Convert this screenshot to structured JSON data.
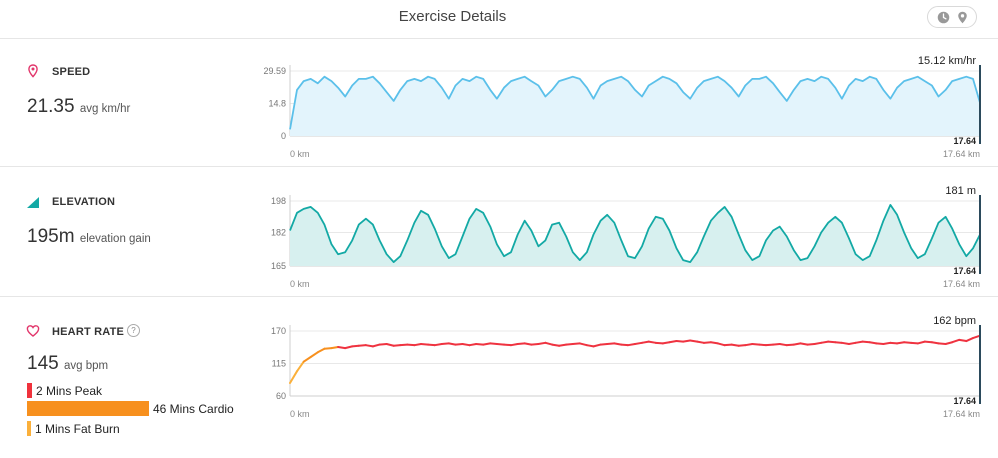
{
  "header": {
    "title": "Exercise Details",
    "toggle_icons": [
      "clock-icon",
      "map-pin-icon"
    ]
  },
  "speed": {
    "label": "SPEED",
    "value": "21.35",
    "unit": "avg km/hr",
    "icon": "map-pin-icon",
    "color": "#5bc0ea",
    "chart_data": {
      "type": "area",
      "y_ticks": [
        "29.59",
        "14.8",
        "0"
      ],
      "ylim": [
        0,
        29.59
      ],
      "xlim": [
        0,
        17.64
      ],
      "x_start_label": "0 km",
      "x_end_label": "17.64 km",
      "cursor_value": "15.12 km/hr",
      "cursor_x": "17.64",
      "x": [
        0,
        0.18,
        0.35,
        0.53,
        0.71,
        0.88,
        1.06,
        1.23,
        1.41,
        1.59,
        1.76,
        1.94,
        2.12,
        2.29,
        2.47,
        2.65,
        2.82,
        3.0,
        3.18,
        3.35,
        3.53,
        3.7,
        3.88,
        4.06,
        4.23,
        4.41,
        4.59,
        4.76,
        4.94,
        5.12,
        5.29,
        5.47,
        5.65,
        5.82,
        6.0,
        6.17,
        6.35,
        6.53,
        6.7,
        6.88,
        7.06,
        7.23,
        7.41,
        7.59,
        7.76,
        7.94,
        8.11,
        8.29,
        8.47,
        8.64,
        8.82,
        9.0,
        9.17,
        9.35,
        9.53,
        9.7,
        9.88,
        10.05,
        10.23,
        10.41,
        10.58,
        10.76,
        10.94,
        11.11,
        11.29,
        11.47,
        11.64,
        11.82,
        12.0,
        12.17,
        12.35,
        12.52,
        12.7,
        12.88,
        13.05,
        13.23,
        13.41,
        13.58,
        13.76,
        13.94,
        14.11,
        14.29,
        14.46,
        14.64,
        14.82,
        14.99,
        15.17,
        15.35,
        15.52,
        15.7,
        15.88,
        16.05,
        16.23,
        16.41,
        16.58,
        16.76,
        16.93,
        17.11,
        17.29,
        17.46,
        17.64
      ],
      "values": [
        3,
        21,
        25,
        26,
        24,
        27,
        25,
        22,
        18,
        23,
        26,
        26,
        27,
        24,
        20,
        16,
        21,
        25,
        26,
        25,
        27,
        26,
        22,
        17,
        23,
        26,
        25,
        27,
        26,
        21,
        17,
        22,
        25,
        26,
        27,
        25,
        23,
        18,
        21,
        25,
        26,
        27,
        26,
        22,
        17,
        23,
        25,
        26,
        27,
        25,
        21,
        18,
        23,
        25,
        27,
        26,
        24,
        20,
        17,
        22,
        25,
        26,
        27,
        25,
        22,
        18,
        23,
        26,
        26,
        27,
        24,
        20,
        16,
        21,
        25,
        26,
        25,
        27,
        26,
        22,
        17,
        23,
        26,
        25,
        27,
        26,
        21,
        17,
        22,
        25,
        26,
        27,
        25,
        23,
        18,
        21,
        25,
        26,
        27,
        26,
        15.12
      ]
    }
  },
  "elevation": {
    "label": "ELEVATION",
    "value": "195",
    "value_unit": "m",
    "unit": "elevation gain",
    "icon": "elevation-icon",
    "color": "#13a9a5",
    "chart_data": {
      "type": "area",
      "y_ticks": [
        "198",
        "182",
        "165"
      ],
      "ylim": [
        165,
        198
      ],
      "xlim": [
        0,
        17.64
      ],
      "x_start_label": "0 km",
      "x_end_label": "17.64 km",
      "cursor_value": "181 m",
      "cursor_x": "17.64",
      "x": [
        0,
        0.18,
        0.35,
        0.53,
        0.71,
        0.88,
        1.06,
        1.23,
        1.41,
        1.59,
        1.76,
        1.94,
        2.12,
        2.29,
        2.47,
        2.65,
        2.82,
        3.0,
        3.18,
        3.35,
        3.53,
        3.7,
        3.88,
        4.06,
        4.23,
        4.41,
        4.59,
        4.76,
        4.94,
        5.12,
        5.29,
        5.47,
        5.65,
        5.82,
        6.0,
        6.17,
        6.35,
        6.53,
        6.7,
        6.88,
        7.06,
        7.23,
        7.41,
        7.59,
        7.76,
        7.94,
        8.11,
        8.29,
        8.47,
        8.64,
        8.82,
        9.0,
        9.17,
        9.35,
        9.53,
        9.7,
        9.88,
        10.05,
        10.23,
        10.41,
        10.58,
        10.76,
        10.94,
        11.11,
        11.29,
        11.47,
        11.64,
        11.82,
        12.0,
        12.17,
        12.35,
        12.52,
        12.7,
        12.88,
        13.05,
        13.23,
        13.41,
        13.58,
        13.76,
        13.94,
        14.11,
        14.29,
        14.46,
        14.64,
        14.82,
        14.99,
        15.17,
        15.35,
        15.52,
        15.7,
        15.88,
        16.05,
        16.23,
        16.41,
        16.58,
        16.76,
        16.93,
        17.11,
        17.29,
        17.46,
        17.64
      ],
      "values": [
        183,
        192,
        194,
        195,
        192,
        186,
        176,
        171,
        172,
        178,
        186,
        189,
        186,
        178,
        171,
        167,
        170,
        178,
        187,
        193,
        191,
        184,
        175,
        169,
        171,
        180,
        189,
        194,
        192,
        185,
        176,
        170,
        172,
        181,
        188,
        183,
        175,
        178,
        186,
        187,
        180,
        172,
        168,
        172,
        181,
        188,
        191,
        187,
        178,
        170,
        169,
        175,
        184,
        190,
        189,
        183,
        174,
        168,
        167,
        172,
        180,
        188,
        192,
        195,
        190,
        181,
        173,
        168,
        170,
        178,
        183,
        185,
        180,
        173,
        168,
        169,
        175,
        182,
        187,
        190,
        187,
        179,
        171,
        168,
        170,
        178,
        188,
        196,
        191,
        182,
        174,
        169,
        171,
        179,
        187,
        190,
        184,
        176,
        170,
        174,
        181
      ]
    }
  },
  "heart_rate": {
    "label": "HEART RATE",
    "value": "145",
    "unit": "avg bpm",
    "icon": "heart-icon",
    "help": "?",
    "colors": {
      "peak": "#f0323c",
      "cardio": "#f7901e",
      "fat_burn": "#fbb03b",
      "line": "#ef3340"
    },
    "zones": [
      {
        "label": "2 Mins Peak",
        "minutes": 2,
        "color": "#f0323c"
      },
      {
        "label": "46 Mins Cardio",
        "minutes": 46,
        "color": "#f7901e"
      },
      {
        "label": "1 Mins Fat Burn",
        "minutes": 1,
        "color": "#fbb03b"
      }
    ],
    "chart_data": {
      "type": "line",
      "y_ticks": [
        "170",
        "115",
        "60"
      ],
      "ylim": [
        60,
        170
      ],
      "xlim": [
        0,
        17.64
      ],
      "x_start_label": "0 km",
      "x_end_label": "17.64 km",
      "cursor_value": "162 bpm",
      "cursor_x": "17.64",
      "x": [
        0,
        0.18,
        0.35,
        0.53,
        0.71,
        0.88,
        1.06,
        1.23,
        1.41,
        1.59,
        1.76,
        1.94,
        2.12,
        2.29,
        2.47,
        2.65,
        2.82,
        3.0,
        3.18,
        3.35,
        3.53,
        3.7,
        3.88,
        4.06,
        4.23,
        4.41,
        4.59,
        4.76,
        4.94,
        5.12,
        5.29,
        5.47,
        5.65,
        5.82,
        6.0,
        6.17,
        6.35,
        6.53,
        6.7,
        6.88,
        7.06,
        7.23,
        7.41,
        7.59,
        7.76,
        7.94,
        8.11,
        8.29,
        8.47,
        8.64,
        8.82,
        9.0,
        9.17,
        9.35,
        9.53,
        9.7,
        9.88,
        10.05,
        10.23,
        10.41,
        10.58,
        10.76,
        10.94,
        11.11,
        11.29,
        11.47,
        11.64,
        11.82,
        12.0,
        12.17,
        12.35,
        12.52,
        12.7,
        12.88,
        13.05,
        13.23,
        13.41,
        13.58,
        13.76,
        13.94,
        14.11,
        14.29,
        14.46,
        14.64,
        14.82,
        14.99,
        15.17,
        15.35,
        15.52,
        15.7,
        15.88,
        16.05,
        16.23,
        16.41,
        16.58,
        16.76,
        16.93,
        17.11,
        17.29,
        17.46,
        17.64
      ],
      "values": [
        82,
        102,
        118,
        126,
        134,
        140,
        141,
        143,
        141,
        144,
        145,
        146,
        144,
        147,
        148,
        145,
        146,
        147,
        146,
        148,
        147,
        146,
        148,
        149,
        147,
        148,
        146,
        148,
        147,
        149,
        148,
        147,
        146,
        148,
        149,
        147,
        148,
        150,
        147,
        145,
        147,
        148,
        149,
        146,
        144,
        147,
        148,
        149,
        147,
        146,
        148,
        150,
        152,
        150,
        149,
        151,
        153,
        152,
        154,
        152,
        150,
        151,
        149,
        146,
        147,
        145,
        146,
        148,
        147,
        146,
        147,
        148,
        146,
        147,
        149,
        147,
        148,
        150,
        152,
        151,
        150,
        148,
        150,
        152,
        151,
        149,
        148,
        150,
        149,
        151,
        150,
        149,
        152,
        151,
        149,
        148,
        151,
        155,
        153,
        158,
        162
      ],
      "fat_burn_until": 0.35,
      "cardio_until": 1.23
    }
  }
}
